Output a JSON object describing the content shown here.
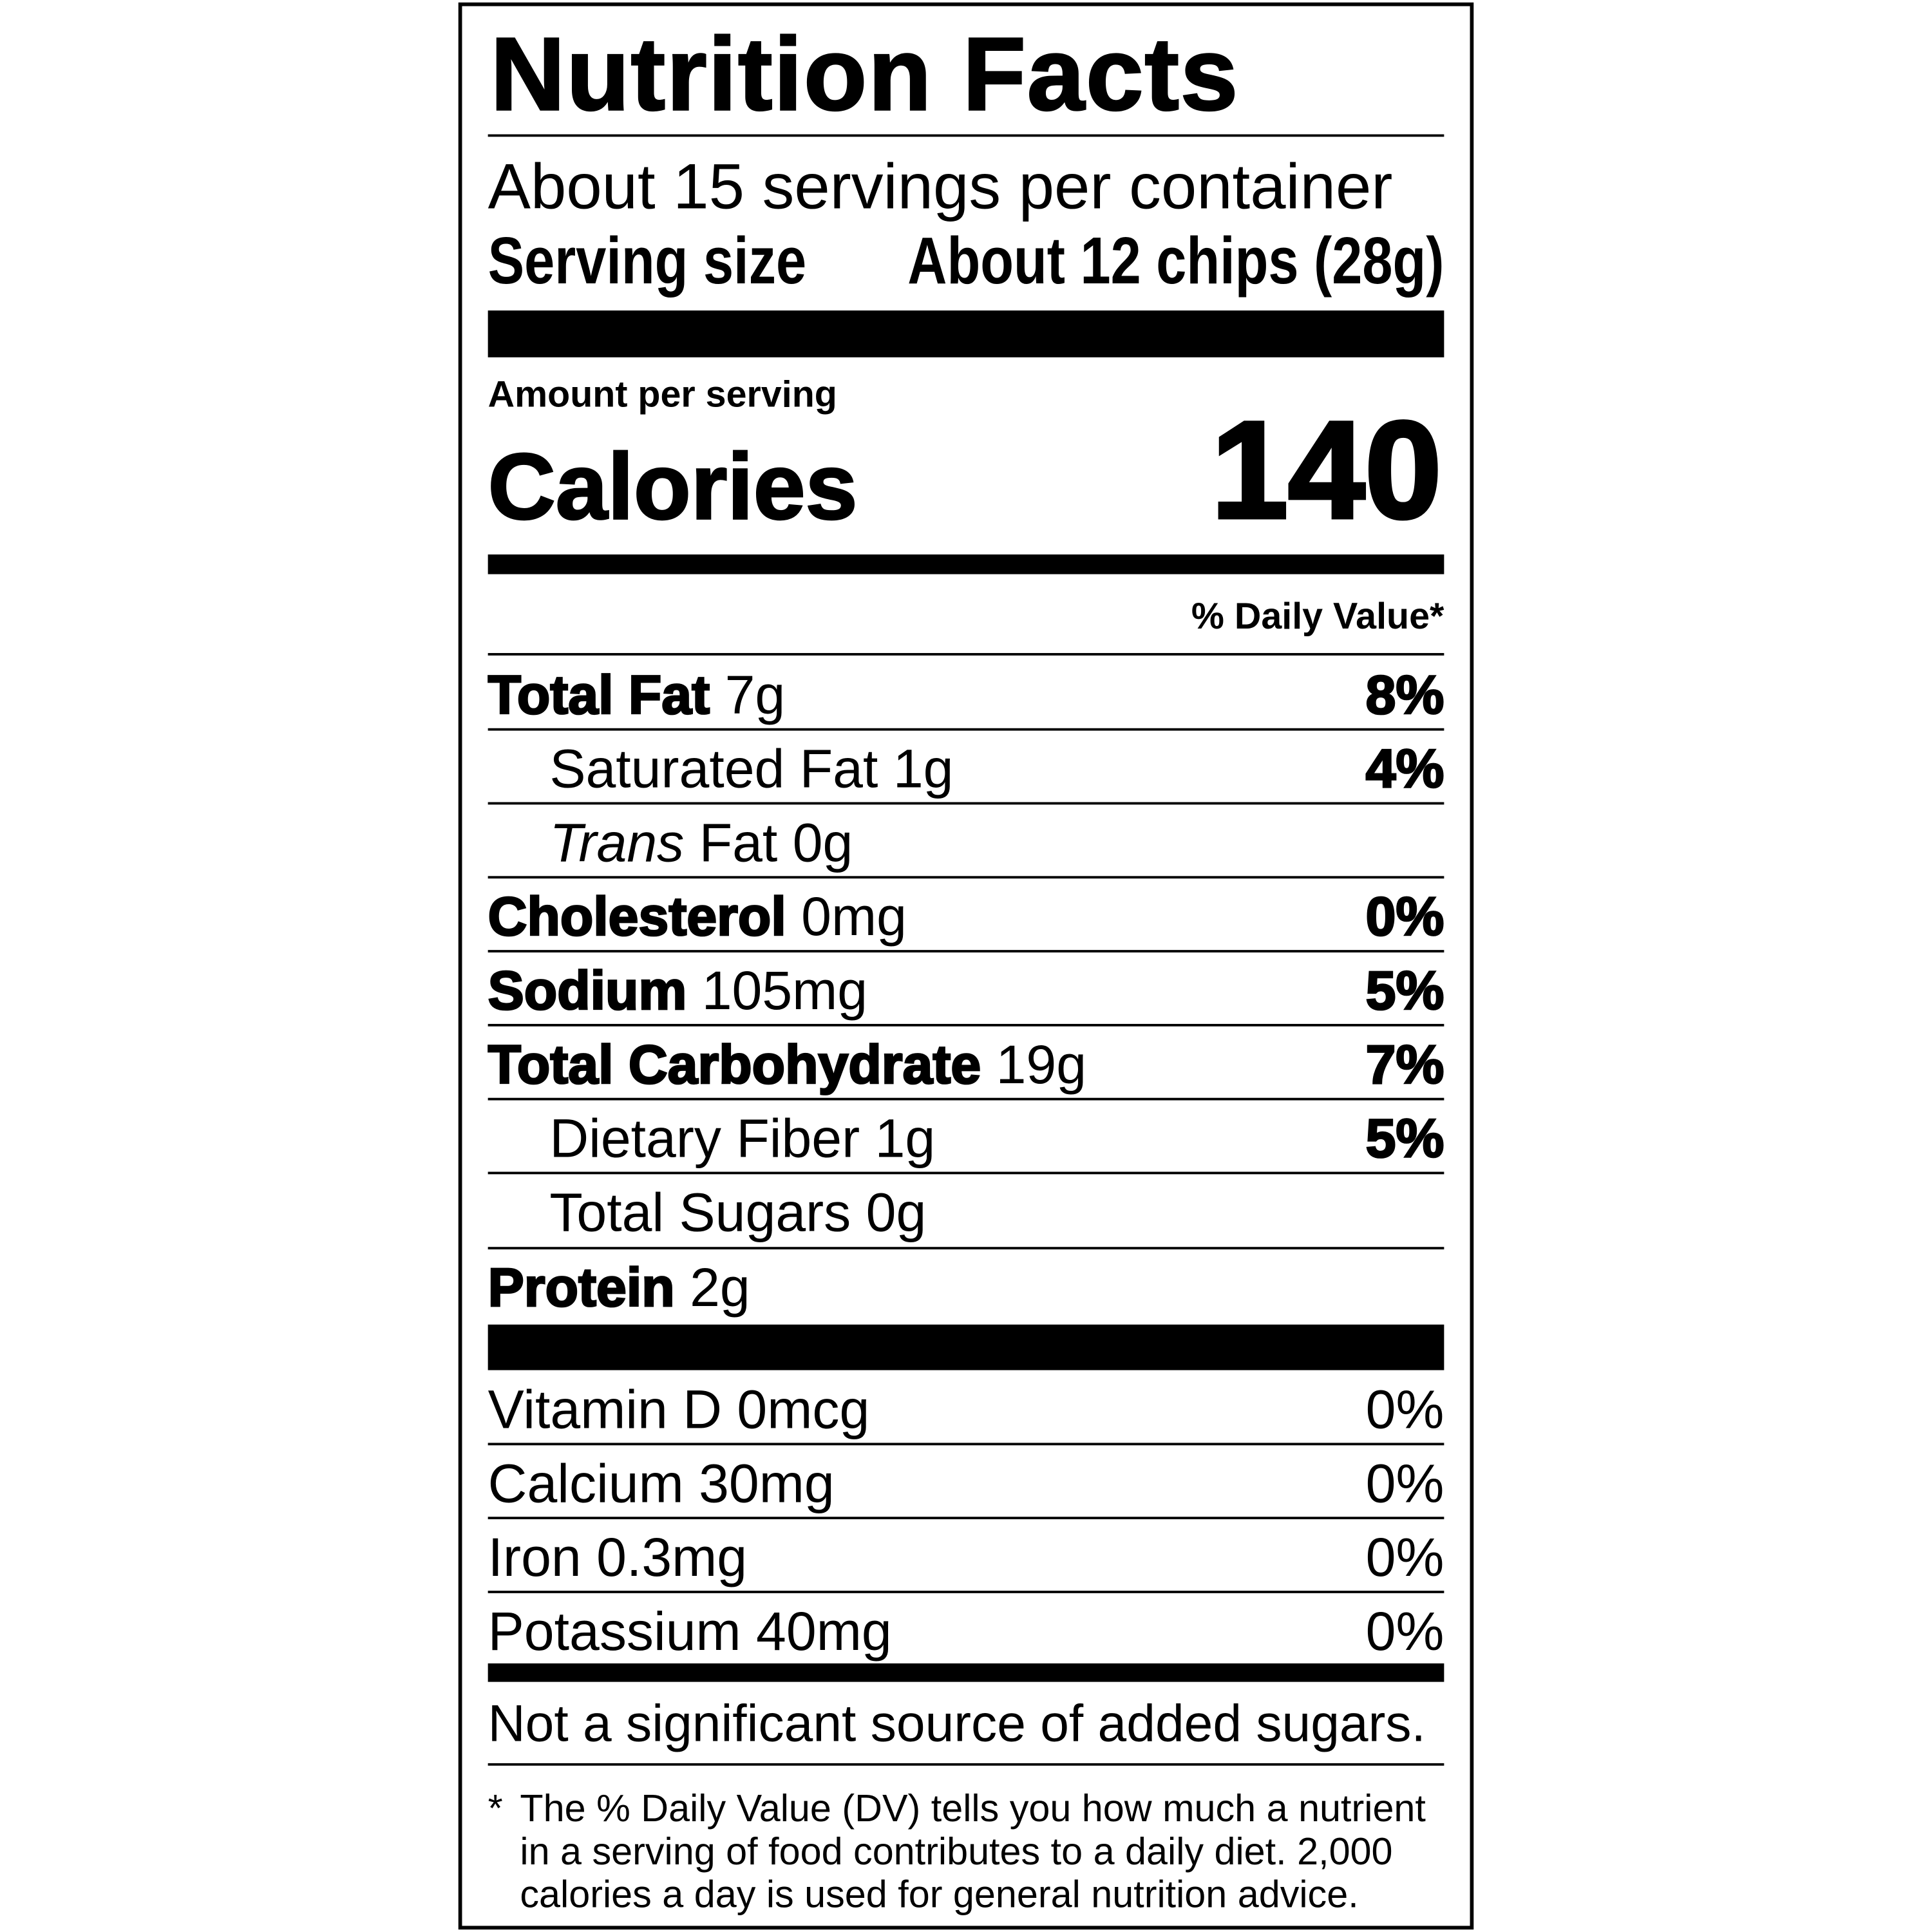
{
  "title": "Nutrition Facts",
  "servings_per_container": "About 15 servings per container",
  "serving_size_label": "Serving size",
  "serving_size_value": "About 12 chips (28g)",
  "amount_per_serving": "Amount per serving",
  "calories_label": "Calories",
  "calories_value": "140",
  "daily_value_header": "% Daily Value*",
  "nutrients": [
    {
      "name": "Total Fat",
      "amount": "7g",
      "dv": "8%"
    },
    {
      "name": "Saturated Fat",
      "amount": "1g",
      "dv": "4%"
    },
    {
      "name": "Trans",
      "name_rest": "Fat",
      "amount": "0g",
      "dv": ""
    },
    {
      "name": "Cholesterol",
      "amount": "0mg",
      "dv": "0%"
    },
    {
      "name": "Sodium",
      "amount": "105mg",
      "dv": "5%"
    },
    {
      "name": "Total Carbohydrate",
      "amount": "19g",
      "dv": "7%"
    },
    {
      "name": "Dietary Fiber",
      "amount": "1g",
      "dv": "5%"
    },
    {
      "name": "Total Sugars",
      "amount": "0g",
      "dv": ""
    },
    {
      "name": "Protein",
      "amount": "2g",
      "dv": ""
    }
  ],
  "vitamins": [
    {
      "text": "Vitamin D 0mcg",
      "dv": "0%"
    },
    {
      "text": "Calcium 30mg",
      "dv": "0%"
    },
    {
      "text": "Iron 0.3mg",
      "dv": "0%"
    },
    {
      "text": "Potassium 40mg",
      "dv": "0%"
    }
  ],
  "added_sugars_note": "Not a significant source of added sugars.",
  "footnote_star": "*",
  "footnote_lines": [
    "The % Daily Value (DV) tells you how much a nutrient",
    "in a serving of food contributes to a daily diet. 2,000",
    "calories a day is used for general nutrition advice."
  ]
}
